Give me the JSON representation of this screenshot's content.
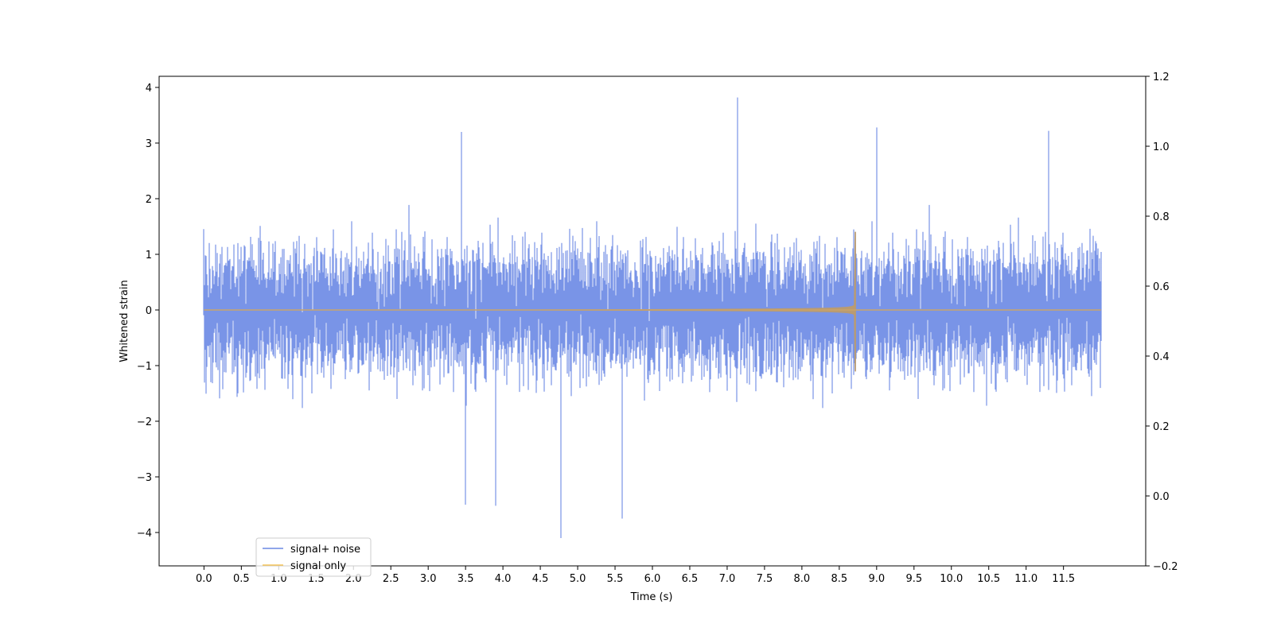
{
  "chart_data": {
    "type": "line",
    "xlabel": "Time (s)",
    "ylabel": "Whitened strain",
    "xlim": [
      -0.6,
      12.6
    ],
    "ylim": [
      -4.6,
      4.2
    ],
    "y2lim": [
      -0.2,
      1.2
    ],
    "xticks": [
      "0.0",
      "0.5",
      "1.0",
      "1.5",
      "2.0",
      "2.5",
      "3.0",
      "3.5",
      "4.0",
      "4.5",
      "5.0",
      "5.5",
      "6.0",
      "6.5",
      "7.0",
      "7.5",
      "8.0",
      "8.5",
      "9.0",
      "9.5",
      "10.0",
      "10.5",
      "11.0",
      "11.5"
    ],
    "yticks": [
      "4",
      "3",
      "2",
      "1",
      "0",
      "−1",
      "−2",
      "−3",
      "−4"
    ],
    "y2ticks": [
      "1.2",
      "1.0",
      "0.8",
      "0.6",
      "0.4",
      "0.2",
      "0.0",
      "−0.2"
    ],
    "grid": false,
    "legend_position": "lower-left",
    "series": [
      {
        "name": "signal+ noise",
        "color": "#6a88e4",
        "x_range": [
          0.0,
          12.0
        ],
        "noise_std": 1.0,
        "notable_peaks": [
          [
            7.14,
            3.82
          ],
          [
            4.78,
            -4.1
          ],
          [
            5.6,
            -3.75
          ],
          [
            3.5,
            -3.5
          ],
          [
            3.9,
            -3.52
          ],
          [
            11.3,
            3.22
          ],
          [
            3.45,
            3.2
          ],
          [
            9.0,
            3.28
          ]
        ]
      },
      {
        "name": "signal only",
        "color": "#f4c35a",
        "x_range": [
          0.0,
          12.0
        ],
        "chirp_start": 4.0,
        "merger_time": 8.72,
        "peak_upper": 1.4,
        "peak_lower": -1.1,
        "baseline": 0.0
      }
    ]
  }
}
